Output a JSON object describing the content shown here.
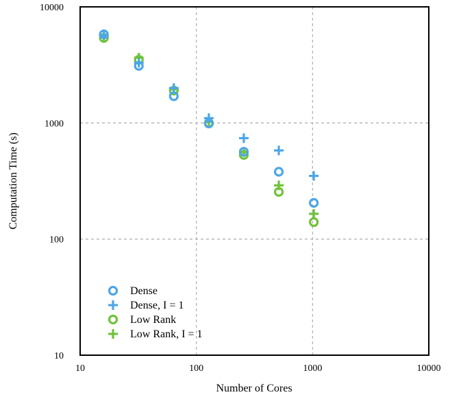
{
  "chart_data": {
    "type": "scatter",
    "xscale": "log",
    "yscale": "log",
    "xlim": [
      10,
      10000
    ],
    "ylim": [
      10,
      10000
    ],
    "grid": true,
    "xlabel": "Number of Cores",
    "ylabel": "Computation Time (s)",
    "xtick_labels": [
      "10",
      "100",
      "1000",
      "10000"
    ],
    "ytick_labels": [
      "10",
      "100",
      "1000",
      "10000"
    ],
    "legend_position": "lower-left",
    "series": [
      {
        "name": "Dense",
        "marker": "circle",
        "color": "#4da6e8",
        "x": [
          16,
          32,
          64,
          128,
          256,
          512,
          1024
        ],
        "y": [
          5800,
          3100,
          1700,
          990,
          565,
          380,
          205
        ]
      },
      {
        "name": "Dense, I = 1",
        "marker": "plus",
        "color": "#4da6e8",
        "x": [
          16,
          32,
          64,
          128,
          256,
          512,
          1024
        ],
        "y": [
          5700,
          3300,
          2000,
          1100,
          740,
          580,
          350
        ]
      },
      {
        "name": "Low Rank",
        "marker": "circle",
        "color": "#6fc23a",
        "x": [
          16,
          32,
          64,
          128,
          256,
          512,
          1024
        ],
        "y": [
          5400,
          3500,
          1900,
          1000,
          530,
          255,
          140
        ]
      },
      {
        "name": "Low Rank, I = 1",
        "marker": "plus",
        "color": "#6fc23a",
        "x": [
          16,
          32,
          64,
          128,
          256,
          512,
          1024
        ],
        "y": [
          5500,
          3650,
          1950,
          1020,
          560,
          290,
          165
        ]
      }
    ]
  }
}
